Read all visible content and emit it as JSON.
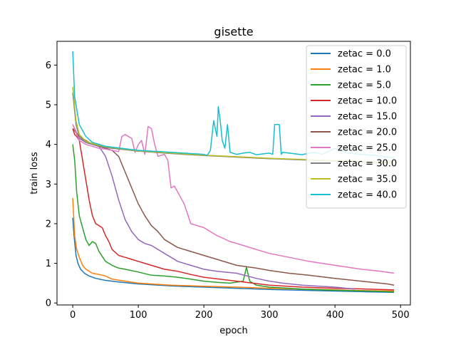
{
  "chart_data": {
    "type": "line",
    "title": "gisette",
    "xlabel": "epoch",
    "ylabel": "train loss",
    "xlim": [
      -24,
      515
    ],
    "ylim": [
      -0.05,
      6.6
    ],
    "xticks": [
      0,
      100,
      200,
      300,
      400,
      500
    ],
    "yticks": [
      0,
      1,
      2,
      3,
      4,
      5,
      6
    ],
    "grid": false,
    "legend_position": "top-right",
    "series": [
      {
        "name": "zetac = 0.0",
        "color": "#1f77b4",
        "x": [
          0,
          2,
          5,
          8,
          12,
          18,
          25,
          35,
          50,
          70,
          100,
          150,
          200,
          250,
          300,
          350,
          400,
          450,
          490
        ],
        "y": [
          2.15,
          1.7,
          1.2,
          1.0,
          0.85,
          0.75,
          0.68,
          0.62,
          0.57,
          0.53,
          0.48,
          0.43,
          0.4,
          0.37,
          0.34,
          0.32,
          0.3,
          0.28,
          0.27
        ]
      },
      {
        "name": "zetac = 1.0",
        "color": "#ff7f0e",
        "x": [
          0,
          3,
          6,
          10,
          15,
          20,
          30,
          40,
          50,
          60,
          80,
          100,
          150,
          200,
          250,
          300,
          350,
          400,
          450,
          490
        ],
        "y": [
          2.65,
          1.7,
          1.35,
          1.15,
          0.95,
          0.85,
          0.75,
          0.72,
          0.68,
          0.6,
          0.55,
          0.5,
          0.45,
          0.42,
          0.4,
          0.37,
          0.35,
          0.33,
          0.31,
          0.3
        ]
      },
      {
        "name": "zetac = 5.0",
        "color": "#2ca02c",
        "x": [
          0,
          3,
          6,
          10,
          15,
          20,
          25,
          30,
          35,
          40,
          50,
          60,
          70,
          80,
          100,
          120,
          140,
          160,
          180,
          200,
          220,
          240,
          260,
          265,
          270,
          280,
          300,
          350,
          400,
          450,
          490
        ],
        "y": [
          4.0,
          3.6,
          2.8,
          2.2,
          1.9,
          1.6,
          1.45,
          1.55,
          1.5,
          1.3,
          1.05,
          0.95,
          0.88,
          0.85,
          0.78,
          0.7,
          0.68,
          0.65,
          0.6,
          0.55,
          0.52,
          0.5,
          0.55,
          0.9,
          0.55,
          0.45,
          0.4,
          0.35,
          0.32,
          0.3,
          0.28
        ]
      },
      {
        "name": "zetac = 10.0",
        "color": "#d62728",
        "x": [
          0,
          3,
          6,
          10,
          15,
          20,
          25,
          30,
          35,
          40,
          45,
          50,
          55,
          60,
          70,
          80,
          90,
          100,
          110,
          120,
          130,
          140,
          160,
          180,
          200,
          250,
          300,
          350,
          400,
          450,
          490
        ],
        "y": [
          4.4,
          4.25,
          4.2,
          4.1,
          3.6,
          3.1,
          2.6,
          2.2,
          2.0,
          1.95,
          1.9,
          1.7,
          1.55,
          1.35,
          1.2,
          1.15,
          1.1,
          1.05,
          1.0,
          0.95,
          0.9,
          0.85,
          0.8,
          0.72,
          0.65,
          0.55,
          0.45,
          0.4,
          0.37,
          0.35,
          0.33
        ]
      },
      {
        "name": "zetac = 15.0",
        "color": "#9467bd",
        "x": [
          0,
          10,
          20,
          30,
          40,
          50,
          60,
          70,
          80,
          90,
          100,
          110,
          120,
          130,
          140,
          150,
          160,
          180,
          200,
          220,
          250,
          280,
          300,
          320,
          350,
          400,
          430
        ],
        "y": [
          4.5,
          4.15,
          4.05,
          4.0,
          3.95,
          3.7,
          3.2,
          2.6,
          2.1,
          1.8,
          1.6,
          1.5,
          1.45,
          1.35,
          1.25,
          1.15,
          1.05,
          0.95,
          0.85,
          0.8,
          0.75,
          0.62,
          0.55,
          0.5,
          0.45,
          0.4,
          0.35
        ]
      },
      {
        "name": "zetac = 20.0",
        "color": "#8c564b",
        "x": [
          0,
          10,
          20,
          30,
          40,
          50,
          60,
          70,
          80,
          90,
          100,
          110,
          120,
          130,
          140,
          150,
          160,
          180,
          200,
          220,
          250,
          280,
          300,
          330,
          360,
          400,
          440,
          480,
          490
        ],
        "y": [
          4.4,
          4.2,
          4.1,
          4.0,
          3.95,
          3.9,
          3.85,
          3.7,
          3.3,
          2.9,
          2.5,
          2.2,
          1.95,
          1.8,
          1.6,
          1.5,
          1.4,
          1.3,
          1.2,
          1.1,
          0.95,
          0.88,
          0.82,
          0.75,
          0.7,
          0.62,
          0.55,
          0.48,
          0.45
        ]
      },
      {
        "name": "zetac = 25.0",
        "color": "#e377c2",
        "x": [
          0,
          10,
          20,
          30,
          40,
          50,
          60,
          70,
          75,
          80,
          90,
          95,
          100,
          105,
          110,
          115,
          120,
          125,
          130,
          140,
          145,
          150,
          155,
          160,
          170,
          180,
          200,
          220,
          240,
          260,
          280,
          300,
          330,
          360,
          400,
          440,
          470,
          490
        ],
        "y": [
          4.5,
          4.1,
          4.0,
          3.95,
          3.9,
          3.88,
          3.85,
          3.82,
          4.2,
          4.25,
          4.15,
          3.8,
          4.0,
          4.1,
          3.75,
          4.45,
          4.4,
          4.0,
          3.7,
          3.75,
          3.6,
          2.9,
          2.95,
          2.8,
          2.5,
          2.0,
          1.9,
          1.7,
          1.55,
          1.45,
          1.35,
          1.25,
          1.15,
          1.05,
          0.95,
          0.85,
          0.8,
          0.75
        ]
      },
      {
        "name": "zetac = 30.0",
        "color": "#7f7f7f",
        "x": [
          0,
          5,
          10,
          20,
          30,
          50,
          100,
          150,
          200,
          250,
          300,
          350,
          400,
          450,
          490
        ],
        "y": [
          5.3,
          4.5,
          4.2,
          4.05,
          4.0,
          3.92,
          3.83,
          3.77,
          3.72,
          3.68,
          3.64,
          3.61,
          3.58,
          3.55,
          3.53
        ]
      },
      {
        "name": "zetac = 35.0",
        "color": "#bcbd22",
        "x": [
          0,
          5,
          10,
          20,
          30,
          50,
          100,
          150,
          200,
          250,
          300,
          350,
          400,
          450,
          490
        ],
        "y": [
          5.45,
          4.6,
          4.25,
          4.08,
          4.02,
          3.94,
          3.84,
          3.78,
          3.73,
          3.69,
          3.65,
          3.62,
          3.59,
          3.56,
          3.54
        ]
      },
      {
        "name": "zetac = 40.0",
        "color": "#17becf",
        "x": [
          0,
          3,
          6,
          10,
          20,
          30,
          50,
          100,
          150,
          200,
          205,
          210,
          215,
          220,
          222,
          225,
          228,
          232,
          236,
          240,
          250,
          260,
          270,
          280,
          290,
          300,
          305,
          308,
          310,
          315,
          318,
          320,
          330,
          340,
          350,
          360,
          370,
          380,
          400,
          420,
          440,
          460,
          470,
          480,
          490
        ],
        "y": [
          6.35,
          5.2,
          4.9,
          4.5,
          4.2,
          4.05,
          3.95,
          3.85,
          3.8,
          3.75,
          3.72,
          3.85,
          4.6,
          4.2,
          4.95,
          4.6,
          4.1,
          3.9,
          4.5,
          3.8,
          3.75,
          3.78,
          3.8,
          3.74,
          3.76,
          3.78,
          3.75,
          4.5,
          4.5,
          4.5,
          3.75,
          3.8,
          3.78,
          3.76,
          3.74,
          3.78,
          3.8,
          3.75,
          3.9,
          3.78,
          3.75,
          3.72,
          3.7,
          3.68,
          3.66
        ]
      }
    ]
  }
}
